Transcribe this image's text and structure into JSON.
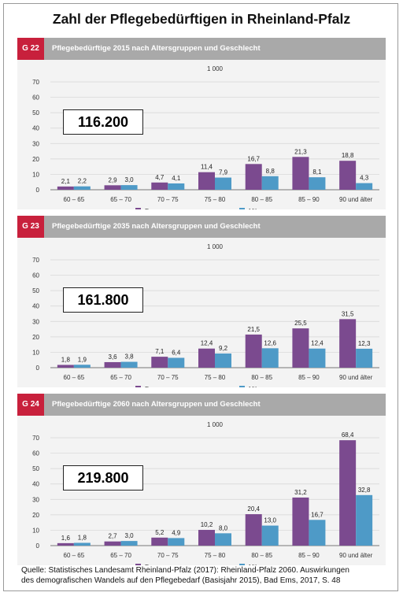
{
  "title": "Zahl der Pflegebedürftigen in Rheinland-Pfalz",
  "colors": {
    "frauen": "#7b4a8f",
    "maenner": "#4e9ac7",
    "accent": "#c8203c",
    "header": "#a9a9a9"
  },
  "chart_data": [
    {
      "type": "bar",
      "code": "G 22",
      "title": "Pflegebedürftige 2015 nach Altersgruppen und Geschlecht",
      "unit": "1 000",
      "total": "116.200",
      "categories": [
        "60 – 65",
        "65 – 70",
        "70 – 75",
        "75 – 80",
        "80 – 85",
        "85 – 90",
        "90 und älter"
      ],
      "series": [
        {
          "name": "Frauen",
          "values": [
            2.1,
            2.9,
            4.7,
            11.4,
            16.7,
            21.3,
            18.8
          ],
          "labels": [
            "2,1",
            "2,9",
            "4,7",
            "11,4",
            "16,7",
            "21,3",
            "18,8"
          ]
        },
        {
          "name": "Männer",
          "values": [
            2.2,
            3.0,
            4.1,
            7.9,
            8.8,
            8.1,
            4.3
          ],
          "labels": [
            "2,2",
            "3,0",
            "4,1",
            "7,9",
            "8,8",
            "8,1",
            "4,3"
          ]
        }
      ],
      "yticks": [
        "0",
        "10",
        "20",
        "30",
        "40",
        "50",
        "60",
        "70"
      ],
      "ylim": [
        0,
        70
      ],
      "grid": true,
      "legend": "bottom"
    },
    {
      "type": "bar",
      "code": "G 23",
      "title": "Pflegebedürftige 2035 nach Altersgruppen und Geschlecht",
      "unit": "1 000",
      "total": "161.800",
      "categories": [
        "60 – 65",
        "65 – 70",
        "70 – 75",
        "75 – 80",
        "80 – 85",
        "85 – 90",
        "90 und älter"
      ],
      "series": [
        {
          "name": "Frauen",
          "values": [
            1.8,
            3.6,
            7.1,
            12.4,
            21.5,
            25.5,
            31.5
          ],
          "labels": [
            "1,8",
            "3,6",
            "7,1",
            "12,4",
            "21,5",
            "25,5",
            "31,5"
          ]
        },
        {
          "name": "Männer",
          "values": [
            1.9,
            3.8,
            6.4,
            9.2,
            12.6,
            12.4,
            12.3
          ],
          "labels": [
            "1,9",
            "3,8",
            "6,4",
            "9,2",
            "12,6",
            "12,4",
            "12,3"
          ]
        }
      ],
      "yticks": [
        "0",
        "10",
        "20",
        "30",
        "40",
        "50",
        "60",
        "70"
      ],
      "ylim": [
        0,
        70
      ],
      "grid": true,
      "legend": "bottom"
    },
    {
      "type": "bar",
      "code": "G 24",
      "title": "Pflegebedürftige 2060 nach Altersgruppen und Geschlecht",
      "unit": "1 000",
      "total": "219.800",
      "categories": [
        "60 – 65",
        "65 – 70",
        "70 – 75",
        "75 – 80",
        "80 – 85",
        "85 – 90",
        "90 und älter"
      ],
      "series": [
        {
          "name": "Frauen",
          "values": [
            1.6,
            2.7,
            5.2,
            10.2,
            20.4,
            31.2,
            68.4
          ],
          "labels": [
            "1,6",
            "2,7",
            "5,2",
            "10,2",
            "20,4",
            "31,2",
            "68,4"
          ]
        },
        {
          "name": "Männer",
          "values": [
            1.8,
            3.0,
            4.9,
            8.0,
            13.0,
            16.7,
            32.8
          ],
          "labels": [
            "1,8",
            "3,0",
            "4,9",
            "8,0",
            "13,0",
            "16,7",
            "32,8"
          ]
        }
      ],
      "yticks": [
        "0",
        "10",
        "20",
        "30",
        "40",
        "50",
        "60",
        "70"
      ],
      "ylim": [
        0,
        70
      ],
      "grid": true,
      "legend": "bottom"
    }
  ],
  "source": {
    "line1": "Quelle: Statistisches Landesamt Rheinland-Pfalz (2017): Rheinland-Pfalz 2060. Auswirkungen",
    "line2": "des demografischen Wandels auf den Pflegebedarf (Basisjahr 2015), Bad Ems, 2017, S. 48"
  }
}
